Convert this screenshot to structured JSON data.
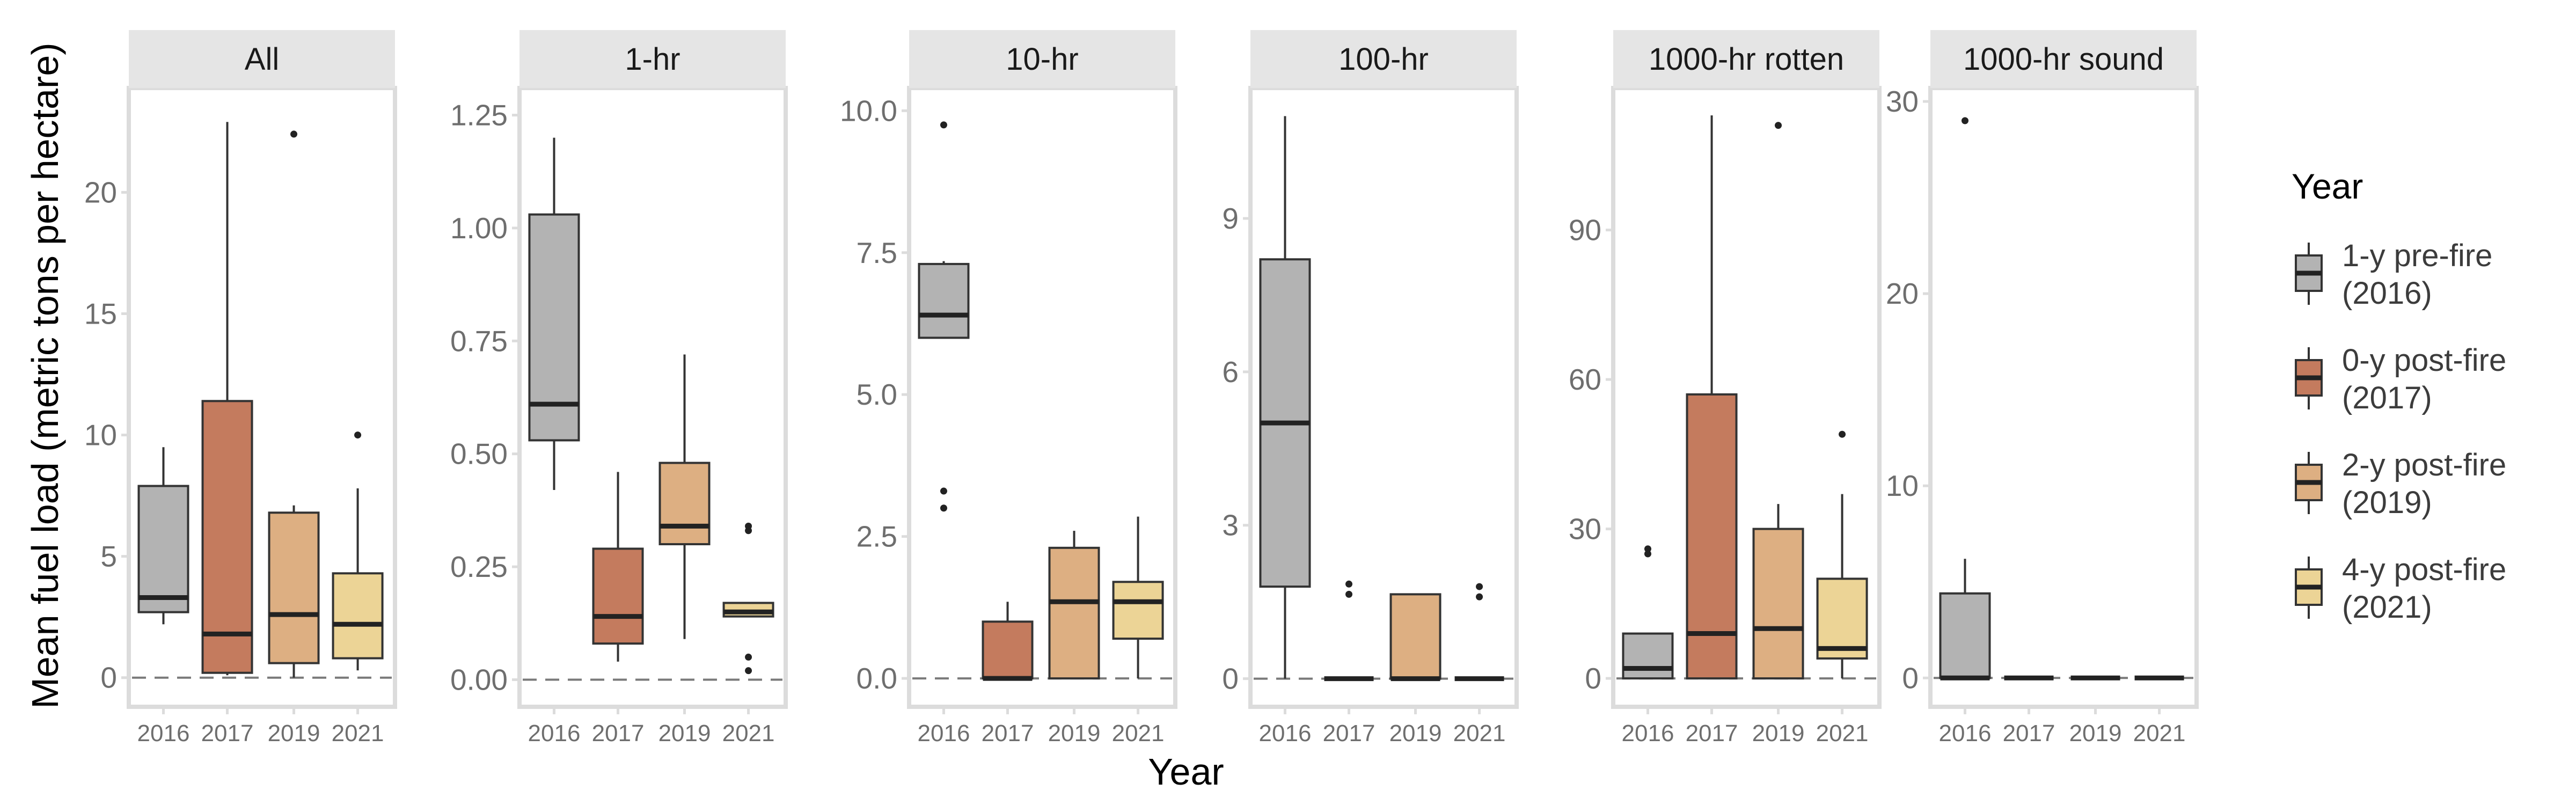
{
  "chart_data": {
    "type": "box",
    "xlabel": "Year",
    "ylabel": "Mean fuel load (metric tons per hectare)",
    "categories": [
      "2016",
      "2017",
      "2019",
      "2021"
    ],
    "legend": {
      "title": "Year",
      "placement": "right",
      "items": [
        {
          "label_line1": "1-y pre-fire",
          "label_line2": "(2016)",
          "color": "#b3b3b3"
        },
        {
          "label_line1": "0-y post-fire",
          "label_line2": "(2017)",
          "color": "#c47b5e"
        },
        {
          "label_line1": "2-y post-fire",
          "label_line2": "(2019)",
          "color": "#ddaf82"
        },
        {
          "label_line1": "4-y post-fire",
          "label_line2": "(2021)",
          "color": "#ecd496"
        }
      ]
    },
    "reference_line": {
      "y": 0,
      "style": "dashed"
    },
    "panels": [
      {
        "title": "All",
        "ylim": [
          -1.2,
          24.3
        ],
        "yticks": [
          0,
          5,
          10,
          15,
          20
        ],
        "ytick_labels": [
          "0",
          "5",
          "10",
          "15",
          "20"
        ],
        "boxes": [
          {
            "category": "2016",
            "whislo": 2.2,
            "q1": 2.7,
            "med": 3.3,
            "q3": 7.9,
            "whishi": 9.5,
            "outliers": []
          },
          {
            "category": "2017",
            "whislo": 0.1,
            "q1": 0.2,
            "med": 1.8,
            "q3": 11.4,
            "whishi": 22.9,
            "outliers": []
          },
          {
            "category": "2019",
            "whislo": 0.0,
            "q1": 0.6,
            "med": 2.6,
            "q3": 6.8,
            "whishi": 7.1,
            "outliers": [
              22.4
            ]
          },
          {
            "category": "2021",
            "whislo": 0.3,
            "q1": 0.8,
            "med": 2.2,
            "q3": 4.3,
            "whishi": 7.8,
            "outliers": [
              10.0
            ]
          }
        ]
      },
      {
        "title": "1-hr",
        "ylim": [
          -0.06,
          1.31
        ],
        "yticks": [
          0,
          0.25,
          0.5,
          0.75,
          1.0,
          1.25
        ],
        "ytick_labels": [
          "0.00",
          "0.25",
          "0.50",
          "0.75",
          "1.00",
          "1.25"
        ],
        "boxes": [
          {
            "category": "2016",
            "whislo": 0.42,
            "q1": 0.53,
            "med": 0.61,
            "q3": 1.03,
            "whishi": 1.2,
            "outliers": []
          },
          {
            "category": "2017",
            "whislo": 0.04,
            "q1": 0.08,
            "med": 0.14,
            "q3": 0.29,
            "whishi": 0.46,
            "outliers": []
          },
          {
            "category": "2019",
            "whislo": 0.09,
            "q1": 0.3,
            "med": 0.34,
            "q3": 0.48,
            "whishi": 0.72,
            "outliers": []
          },
          {
            "category": "2021",
            "whislo": 0.14,
            "q1": 0.14,
            "med": 0.15,
            "q3": 0.17,
            "whishi": 0.17,
            "outliers": [
              0.33,
              0.34,
              0.05,
              0.02
            ]
          }
        ]
      },
      {
        "title": "10-hr",
        "ylim": [
          -0.5,
          10.4
        ],
        "yticks": [
          0,
          2.5,
          5.0,
          7.5,
          10.0
        ],
        "ytick_labels": [
          "0.0",
          "2.5",
          "5.0",
          "7.5",
          "10.0"
        ],
        "boxes": [
          {
            "category": "2016",
            "whislo": 6.0,
            "q1": 6.0,
            "med": 6.4,
            "q3": 7.3,
            "whishi": 7.35,
            "outliers": [
              9.75,
              3.3,
              3.0
            ]
          },
          {
            "category": "2017",
            "whislo": 0.0,
            "q1": 0.0,
            "med": 0.0,
            "q3": 1.0,
            "whishi": 1.35,
            "outliers": []
          },
          {
            "category": "2019",
            "whislo": 0.0,
            "q1": 0.0,
            "med": 1.35,
            "q3": 2.3,
            "whishi": 2.6,
            "outliers": []
          },
          {
            "category": "2021",
            "whislo": 0.0,
            "q1": 0.7,
            "med": 1.35,
            "q3": 1.7,
            "whishi": 2.85,
            "outliers": []
          }
        ]
      },
      {
        "title": "100-hr",
        "ylim": [
          -0.55,
          11.55
        ],
        "yticks": [
          0,
          3,
          6,
          9
        ],
        "ytick_labels": [
          "0",
          "3",
          "6",
          "9"
        ],
        "boxes": [
          {
            "category": "2016",
            "whislo": 0.0,
            "q1": 1.8,
            "med": 5.0,
            "q3": 8.2,
            "whishi": 11.0,
            "outliers": []
          },
          {
            "category": "2017",
            "whislo": 0.0,
            "q1": 0.0,
            "med": 0.0,
            "q3": 0.0,
            "whishi": 0.0,
            "outliers": [
              1.85,
              1.65
            ]
          },
          {
            "category": "2019",
            "whislo": 0.0,
            "q1": 0.0,
            "med": 0.0,
            "q3": 1.65,
            "whishi": 1.65,
            "outliers": []
          },
          {
            "category": "2021",
            "whislo": 0.0,
            "q1": 0.0,
            "med": 0.0,
            "q3": 0.0,
            "whishi": 0.0,
            "outliers": [
              1.8,
              1.6
            ]
          }
        ]
      },
      {
        "title": "1000-hr rotten",
        "ylim": [
          -5.7,
          118.5
        ],
        "yticks": [
          0,
          30,
          60,
          90
        ],
        "ytick_labels": [
          "0",
          "30",
          "60",
          "90"
        ],
        "boxes": [
          {
            "category": "2016",
            "whislo": 0.0,
            "q1": 0.0,
            "med": 2.0,
            "q3": 9.0,
            "whishi": 9.0,
            "outliers": [
              25.0,
              26.0
            ]
          },
          {
            "category": "2017",
            "whislo": 0.0,
            "q1": 0.0,
            "med": 9.0,
            "q3": 57.0,
            "whishi": 113.0,
            "outliers": []
          },
          {
            "category": "2019",
            "whislo": 0.0,
            "q1": 0.0,
            "med": 10.0,
            "q3": 30.0,
            "whishi": 35.0,
            "outliers": [
              111.0
            ]
          },
          {
            "category": "2021",
            "whislo": 0.0,
            "q1": 4.0,
            "med": 6.0,
            "q3": 20.0,
            "whishi": 37.0,
            "outliers": [
              49.0
            ]
          }
        ]
      },
      {
        "title": "1000-hr sound",
        "ylim": [
          -1.5,
          30.7
        ],
        "yticks": [
          0,
          10,
          20,
          30
        ],
        "ytick_labels": [
          "0",
          "10",
          "20",
          "30"
        ],
        "boxes": [
          {
            "category": "2016",
            "whislo": 0.0,
            "q1": 0.0,
            "med": 0.0,
            "q3": 4.4,
            "whishi": 6.2,
            "outliers": [
              29.0
            ]
          },
          {
            "category": "2017",
            "whislo": 0.0,
            "q1": 0.0,
            "med": 0.0,
            "q3": 0.0,
            "whishi": 0.0,
            "outliers": []
          },
          {
            "category": "2019",
            "whislo": 0.0,
            "q1": 0.0,
            "med": 0.0,
            "q3": 0.0,
            "whishi": 0.0,
            "outliers": []
          },
          {
            "category": "2021",
            "whislo": 0.0,
            "q1": 0.0,
            "med": 0.0,
            "q3": 0.0,
            "whishi": 0.0,
            "outliers": []
          }
        ]
      }
    ]
  }
}
